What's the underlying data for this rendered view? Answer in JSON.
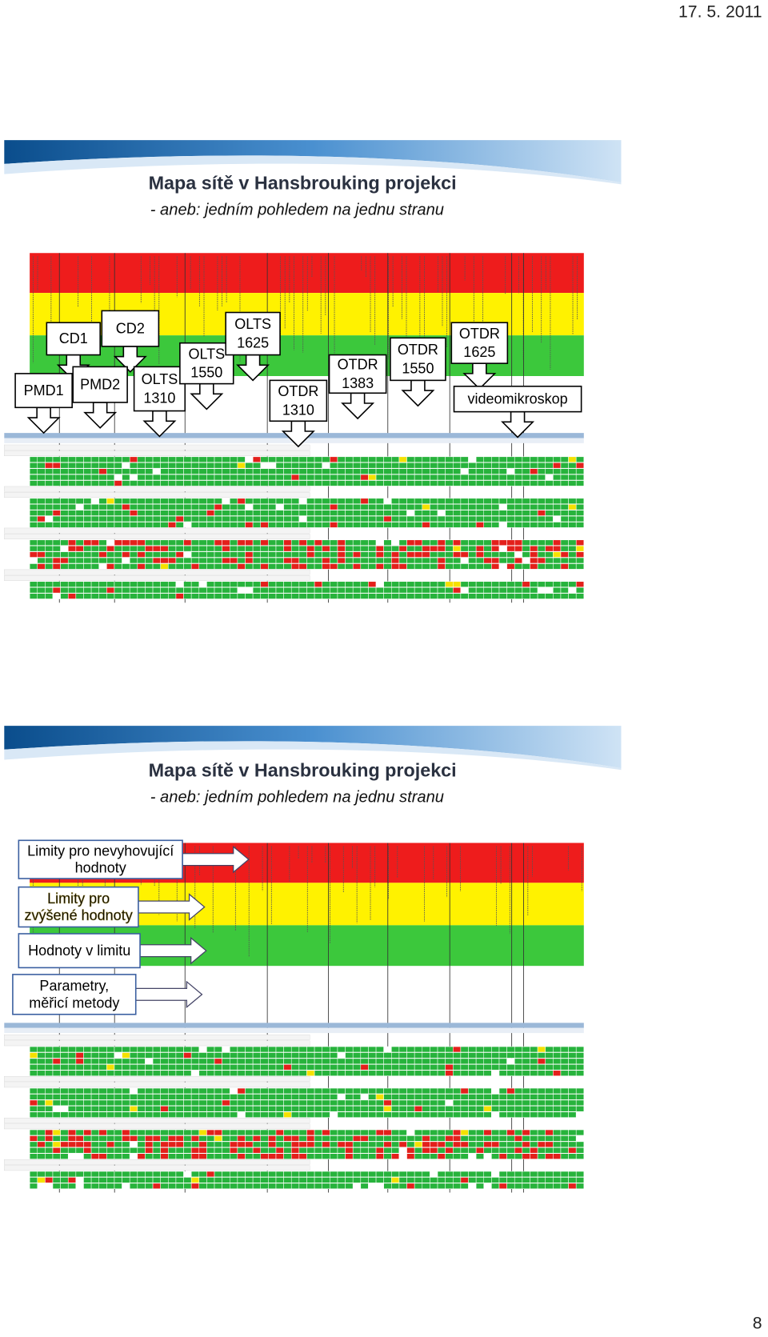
{
  "header": {
    "date": "17. 5. 2011"
  },
  "slides": [
    {
      "title": "Mapa sítě v Hansbrouking projekci",
      "subtitle": "- aneb: jedním pohledem na jednu stranu",
      "callouts": [
        {
          "lines": [
            "CD1"
          ]
        },
        {
          "lines": [
            "CD2"
          ]
        },
        {
          "lines": [
            "PMD1"
          ]
        },
        {
          "lines": [
            "PMD2"
          ]
        },
        {
          "lines": [
            "OLTS",
            "1310"
          ]
        },
        {
          "lines": [
            "OLTS",
            "1550"
          ]
        },
        {
          "lines": [
            "OLTS",
            "1625"
          ]
        },
        {
          "lines": [
            "OTDR",
            "1310"
          ]
        },
        {
          "lines": [
            "OTDR",
            "1383"
          ]
        },
        {
          "lines": [
            "OTDR",
            "1550"
          ]
        },
        {
          "lines": [
            "OTDR",
            "1625"
          ]
        },
        {
          "lines": [
            "videomikroskop"
          ]
        }
      ]
    },
    {
      "title": "Mapa sítě v Hansbrouking projekci",
      "subtitle": "- aneb: jedním pohledem na jednu stranu",
      "callouts": [
        {
          "lines": [
            "Limity pro nevyhovující",
            "hodnoty"
          ]
        },
        {
          "lines": [
            "Limity pro",
            "zvýšené hodnoty"
          ]
        },
        {
          "lines": [
            "Hodnoty v limitu"
          ]
        },
        {
          "lines": [
            "Parametry,",
            "měřicí metody"
          ]
        }
      ]
    }
  ],
  "footer": {
    "page": "8"
  }
}
